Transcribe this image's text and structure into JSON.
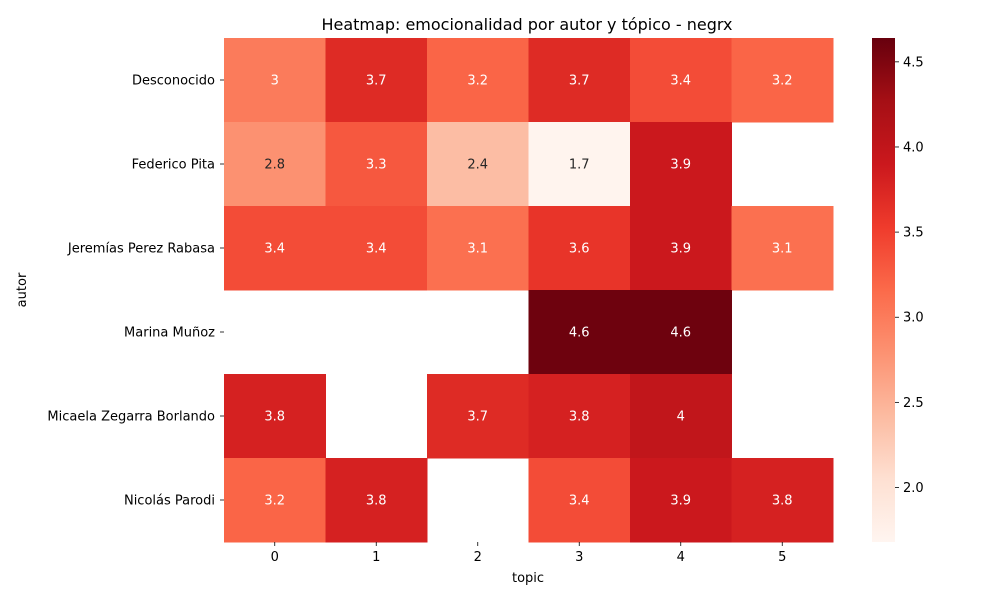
{
  "chart_data": {
    "type": "heatmap",
    "title": "Heatmap: emocionalidad por autor y tópico - negrx",
    "xlabel": "topic",
    "ylabel": "autor",
    "x_categories": [
      "0",
      "1",
      "2",
      "3",
      "4",
      "5"
    ],
    "y_categories": [
      "Desconocido",
      "Federico Pita",
      "Jeremías Perez Rabasa",
      "Marina Muñoz",
      "Micaela Zegarra Borlando",
      "Nicolás Parodi"
    ],
    "values": [
      [
        3.0,
        3.7,
        3.2,
        3.7,
        3.4,
        3.2
      ],
      [
        2.8,
        3.3,
        2.4,
        1.7,
        3.9,
        null
      ],
      [
        3.4,
        3.4,
        3.1,
        3.6,
        3.9,
        3.1
      ],
      [
        null,
        null,
        null,
        4.6,
        4.6,
        null
      ],
      [
        3.8,
        null,
        3.7,
        3.8,
        4.0,
        null
      ],
      [
        3.2,
        3.8,
        null,
        3.4,
        3.9,
        3.8
      ]
    ],
    "value_labels": [
      [
        "3",
        "3.7",
        "3.2",
        "3.7",
        "3.4",
        "3.2"
      ],
      [
        "2.8",
        "3.3",
        "2.4",
        "1.7",
        "3.9",
        ""
      ],
      [
        "3.4",
        "3.4",
        "3.1",
        "3.6",
        "3.9",
        "3.1"
      ],
      [
        "",
        "",
        "",
        "4.6",
        "4.6",
        ""
      ],
      [
        "3.8",
        "",
        "3.7",
        "3.8",
        "4",
        ""
      ],
      [
        "3.2",
        "3.8",
        "",
        "3.4",
        "3.9",
        "3.8"
      ]
    ],
    "colorbar": {
      "range": [
        1.68,
        4.64
      ],
      "ticks": [
        "2.0",
        "2.5",
        "3.0",
        "3.5",
        "4.0",
        "4.5"
      ],
      "tick_values": [
        2.0,
        2.5,
        3.0,
        3.5,
        4.0,
        4.5
      ]
    },
    "colormap": "Reds",
    "grid": false
  }
}
